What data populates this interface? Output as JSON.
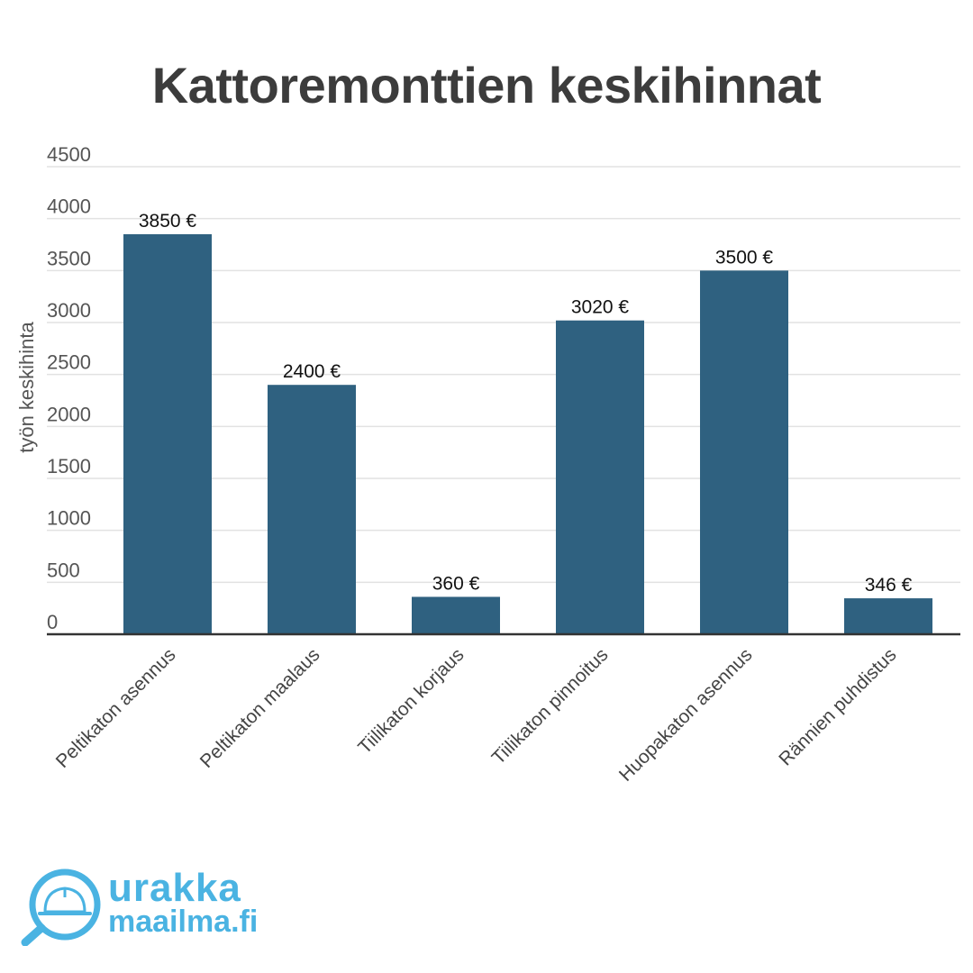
{
  "chart_data": {
    "type": "bar",
    "title": "Kattoremonttien keskihinnat",
    "xlabel": "",
    "ylabel": "työn keskihinta",
    "categories": [
      "Peltikaton asennus",
      "Peltikaton maalaus",
      "Tiilikaton korjaus",
      "Tiilikaton pinnoitus",
      "Huopakaton asennus",
      "Rännien puhdistus"
    ],
    "values": [
      3850,
      2400,
      360,
      3020,
      3500,
      346
    ],
    "data_labels": [
      "3850 €",
      "2400 €",
      "360 €",
      "3020 €",
      "3500 €",
      "346 €"
    ],
    "yticks": [
      "0",
      "500",
      "1000",
      "1500",
      "2000",
      "2500",
      "3000",
      "3500",
      "4000",
      "4500"
    ],
    "ylim": [
      0,
      4500
    ],
    "grid": true,
    "bar_color": "#2f6180"
  },
  "logo": {
    "line1": "urakka",
    "line2": "maailma.fi",
    "color": "#4ab3e2"
  }
}
